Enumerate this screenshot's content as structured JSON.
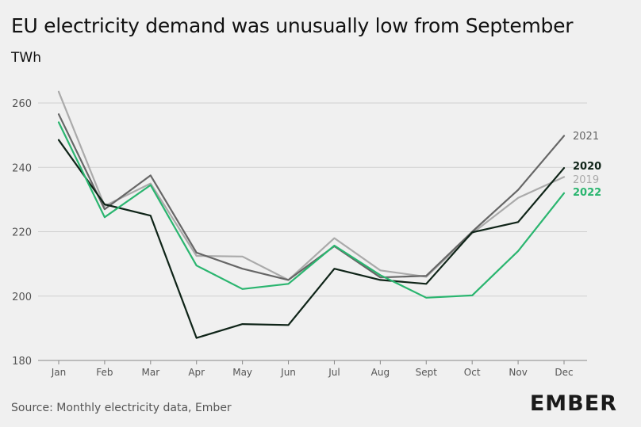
{
  "title": "EU electricity demand was unusually low from September",
  "unit": "TWh",
  "source": "Source: Monthly electricity data, Ember",
  "logo_text": "EMBER",
  "chart_data": {
    "type": "line",
    "categories": [
      "Jan",
      "Feb",
      "Mar",
      "Apr",
      "May",
      "Jun",
      "Jul",
      "Aug",
      "Sept",
      "Oct",
      "Nov",
      "Dec"
    ],
    "ylim": [
      180,
      265
    ],
    "yticks": [
      180,
      200,
      220,
      240,
      260
    ],
    "grid": true,
    "series": [
      {
        "name": "2019",
        "color": "#aaaaaa",
        "values": [
          263.5,
          228,
          235,
          212.5,
          212.3,
          205,
          218,
          208,
          206,
          219.5,
          230.5,
          237
        ]
      },
      {
        "name": "2021",
        "color": "#666666",
        "values": [
          256.5,
          227,
          237.5,
          213.5,
          208.5,
          205,
          215.5,
          205.8,
          206.3,
          220,
          233,
          249.8
        ]
      },
      {
        "name": "2020",
        "color": "#0f2418",
        "values": [
          248.5,
          228.5,
          225,
          187,
          191.3,
          191,
          208.5,
          205,
          203.8,
          219.8,
          223,
          239.8
        ]
      },
      {
        "name": "2022",
        "color": "#2ab56f",
        "values": [
          254,
          224.5,
          234.5,
          209.5,
          202.2,
          203.8,
          215.7,
          206.5,
          199.5,
          200.2,
          214,
          232
        ]
      }
    ]
  }
}
